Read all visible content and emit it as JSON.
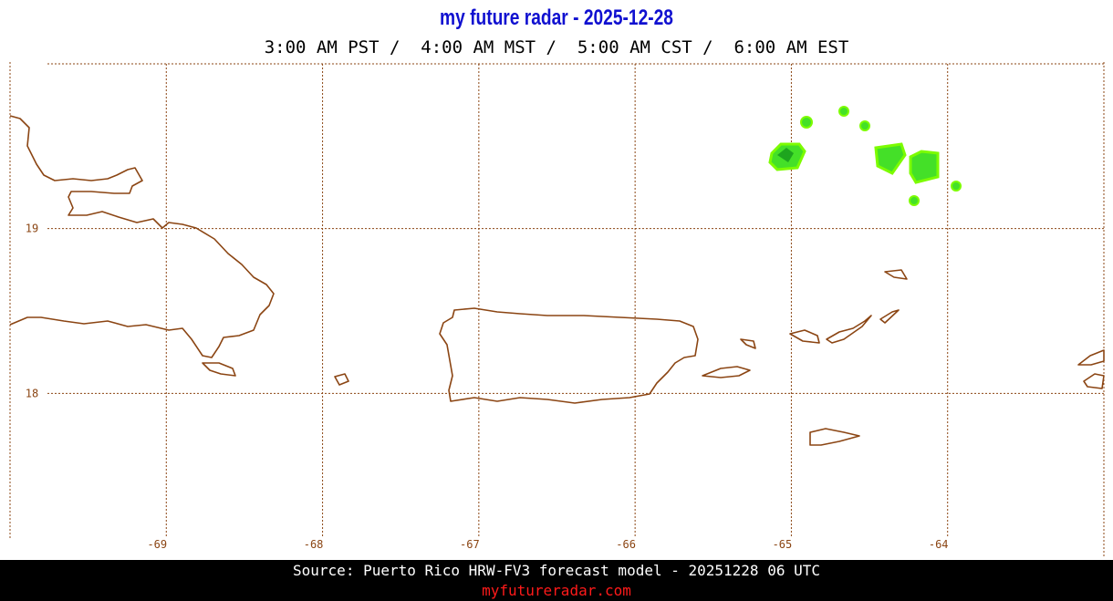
{
  "header": {
    "title": "my future radar - 2025-12-28",
    "times": "3:00 AM PST /  4:00 AM MST /  5:00 AM CST /  6:00 AM EST"
  },
  "map": {
    "xlim": [
      -70,
      -63
    ],
    "ylim": [
      17,
      20
    ],
    "xticks": [
      -69,
      -68,
      -67,
      -66,
      -65,
      -64
    ],
    "yticks": [
      19,
      18
    ]
  },
  "footer": {
    "source": "Source: Puerto Rico HRW-FV3 forecast model - 20251228 06 UTC",
    "site": "myfutureradar.com"
  }
}
